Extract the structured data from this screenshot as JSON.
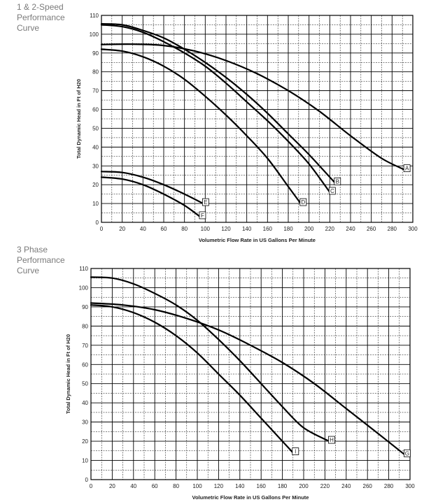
{
  "chart_data": [
    {
      "type": "line",
      "title_lines": [
        "1 & 2-Speed",
        "Performance",
        "Curve"
      ],
      "xlabel": "Volumetric Flow Rate in US Gallons Per Minute",
      "ylabel": "Total Dynamic Head in Ft of H20",
      "xlim": [
        0,
        300
      ],
      "ylim": [
        0,
        110
      ],
      "xticks": [
        "0",
        "20",
        "40",
        "60",
        "80",
        "100",
        "120",
        "140",
        "160",
        "180",
        "200",
        "220",
        "240",
        "260",
        "280",
        "300"
      ],
      "yticks": [
        "0",
        "10",
        "20",
        "30",
        "40",
        "50",
        "60",
        "70",
        "80",
        "90",
        "100",
        "110"
      ],
      "grid": true,
      "series": [
        {
          "name": "A",
          "x": [
            0,
            30,
            60,
            90,
            120,
            150,
            180,
            210,
            240,
            270,
            292
          ],
          "y": [
            94.5,
            94.7,
            94,
            91,
            86,
            79,
            70,
            59,
            46,
            34,
            28
          ]
        },
        {
          "name": "B",
          "x": [
            0,
            20,
            40,
            60,
            80,
            100,
            120,
            140,
            160,
            180,
            200,
            225
          ],
          "y": [
            105.5,
            105,
            102,
            98,
            92,
            85,
            77,
            68,
            58,
            47,
            36,
            21
          ]
        },
        {
          "name": "C",
          "x": [
            0,
            20,
            40,
            60,
            80,
            100,
            120,
            140,
            160,
            180,
            200,
            220
          ],
          "y": [
            105,
            104,
            101,
            96,
            90,
            83,
            74,
            64,
            54,
            43,
            31,
            16
          ]
        },
        {
          "name": "D",
          "x": [
            0,
            20,
            40,
            60,
            80,
            100,
            120,
            140,
            160,
            180,
            192
          ],
          "y": [
            92,
            91,
            88,
            83,
            76,
            67,
            57,
            46,
            34,
            19,
            10
          ]
        },
        {
          "name": "E",
          "x": [
            0,
            20,
            40,
            60,
            80,
            98
          ],
          "y": [
            27,
            26.5,
            24,
            20,
            15,
            10
          ]
        },
        {
          "name": "F",
          "x": [
            0,
            20,
            40,
            60,
            80,
            95
          ],
          "y": [
            24,
            23,
            20,
            15,
            9,
            3
          ]
        }
      ]
    },
    {
      "type": "line",
      "title_lines": [
        "3 Phase",
        "Performance",
        "Curve"
      ],
      "xlabel": "Volumetric Flow Rate in US Gallons Per Minute",
      "ylabel": "Total Dynamic Head in Ft of H20",
      "xlim": [
        0,
        300
      ],
      "ylim": [
        0,
        110
      ],
      "xticks": [
        "0",
        "20",
        "40",
        "60",
        "80",
        "100",
        "120",
        "140",
        "160",
        "180",
        "200",
        "220",
        "240",
        "260",
        "280",
        "300"
      ],
      "yticks": [
        "0",
        "10",
        "20",
        "30",
        "40",
        "50",
        "60",
        "70",
        "80",
        "90",
        "100",
        "110"
      ],
      "grid": true,
      "series": [
        {
          "name": "G",
          "x": [
            0,
            30,
            60,
            90,
            120,
            150,
            180,
            210,
            240,
            270,
            295
          ],
          "y": [
            92,
            91,
            88.5,
            84,
            78,
            70,
            61,
            50,
            37,
            24,
            13
          ]
        },
        {
          "name": "H",
          "x": [
            0,
            20,
            40,
            60,
            80,
            100,
            120,
            140,
            160,
            180,
            200,
            224
          ],
          "y": [
            105.5,
            105,
            102,
            97,
            91,
            83,
            73,
            62,
            50,
            38,
            27,
            20
          ]
        },
        {
          "name": "I",
          "x": [
            0,
            20,
            40,
            60,
            80,
            100,
            120,
            140,
            160,
            180,
            190
          ],
          "y": [
            91,
            90,
            87,
            82,
            75,
            66,
            55,
            44,
            32,
            20,
            14
          ]
        }
      ]
    }
  ]
}
